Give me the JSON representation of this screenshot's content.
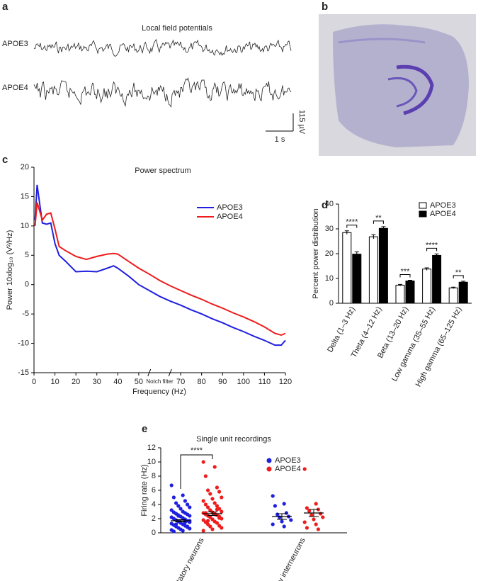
{
  "panel_labels": [
    "a",
    "b",
    "c",
    "d",
    "e"
  ],
  "chart_data": [
    {
      "type": "traces",
      "title": "Local field potentials",
      "series": [
        {
          "name": "APOE3",
          "color": "#222222"
        },
        {
          "name": "APOE4",
          "color": "#222222"
        }
      ],
      "scale_bar": {
        "x_label": "1 s",
        "y_label": "115 µV"
      }
    },
    {
      "type": "line",
      "title": "Power spectrum",
      "xlabel": "Frequency (Hz)",
      "ylabel": "Power 10xlog₁₀ (V²/Hz)",
      "x": [
        0.5,
        1.5,
        4,
        6,
        8,
        10,
        12,
        15,
        20,
        25,
        30,
        35,
        38,
        40,
        45,
        50,
        55,
        60,
        65,
        70,
        75,
        80,
        85,
        90,
        95,
        100,
        105,
        110,
        115,
        118,
        120
      ],
      "series": [
        {
          "name": "APOE3",
          "color": "#1f1fe0",
          "values": [
            11,
            17,
            10.5,
            10.3,
            10.5,
            7,
            5,
            4,
            2.2,
            2.3,
            2.2,
            2.8,
            3.2,
            2.8,
            1.5,
            0,
            -1,
            -2,
            -2.8,
            -3.5,
            -4.3,
            -5,
            -5.8,
            -6.5,
            -7.3,
            -8,
            -8.8,
            -9.5,
            -10.3,
            -10.3,
            -9.5
          ]
        },
        {
          "name": "APOE4",
          "color": "#ee1c1c",
          "values": [
            10,
            14,
            11,
            12,
            12.2,
            9.5,
            6.5,
            5.8,
            4.8,
            4.3,
            4.8,
            5.2,
            5.3,
            5.2,
            4,
            2.8,
            1.8,
            0.7,
            -0.2,
            -1,
            -1.8,
            -2.5,
            -3.3,
            -4,
            -4.8,
            -5.5,
            -6.3,
            -7.2,
            -8.3,
            -8.6,
            -8.3
          ]
        }
      ],
      "xlim": [
        0,
        120
      ],
      "xticks": [
        0,
        10,
        20,
        30,
        40,
        50,
        {
          "value": 60,
          "label": "Notch filter"
        },
        70,
        80,
        90,
        100,
        110,
        120
      ],
      "ylim": [
        -15,
        20
      ],
      "yticks": [
        -15,
        -10,
        -5,
        0,
        5,
        10,
        15,
        20
      ]
    },
    {
      "type": "bar",
      "ylabel": "Percent power distribution",
      "categories": [
        "Delta (1–3 Hz)",
        "Theta (4–12 Hz)",
        "Beta (13–20 Hz)",
        "Low gamma (35–55 Hz)",
        "High gamma (65–125 Hz)"
      ],
      "series": [
        {
          "name": "APOE3",
          "color": "#ffffff",
          "edgecolor": "#000000",
          "values": [
            28.5,
            26.8,
            7.3,
            13.8,
            6.2
          ],
          "errors": [
            0.7,
            0.8,
            0.3,
            0.5,
            0.3
          ]
        },
        {
          "name": "APOE4",
          "color": "#000000",
          "edgecolor": "#000000",
          "values": [
            19.8,
            30.2,
            9,
            19.3,
            8.5
          ],
          "errors": [
            0.9,
            0.7,
            0.3,
            0.6,
            0.4
          ]
        }
      ],
      "significance": [
        "****",
        "**",
        "***",
        "****",
        "**"
      ],
      "ylim": [
        0,
        40
      ],
      "yticks": [
        0,
        10,
        20,
        30,
        40
      ]
    },
    {
      "type": "strip",
      "title": "Single unit recordings",
      "ylabel": "Firing rate (Hz)",
      "categories": [
        "Excitatory neurons",
        "Inhibitory interneurons"
      ],
      "series": [
        {
          "name": "APOE3",
          "color": "#1f1fe0",
          "values": [
            [
              6.7,
              5.3,
              5,
              4.5,
              4.2,
              4,
              3.8,
              3.6,
              3.4,
              3.2,
              3,
              2.9,
              2.8,
              2.7,
              2.6,
              2.5,
              2.4,
              2.3,
              2.2,
              2.1,
              2,
              1.9,
              1.8,
              1.7,
              1.6,
              1.5,
              1.4,
              1.3,
              1.2,
              1.1,
              1,
              0.9,
              0.8,
              0.7,
              0.6,
              0.5,
              0.4,
              0.3,
              0.2,
              1.5,
              1.2,
              0.9,
              2.4,
              1.7
            ],
            [
              5.2,
              4.1,
              3.8,
              2.8,
              2.6,
              2.3,
              2.2,
              1.8,
              1.6,
              1.2,
              0.9
            ]
          ],
          "means": [
            1.7,
            2.3
          ],
          "sem": [
            0.15,
            0.4
          ]
        },
        {
          "name": "APOE4",
          "color": "#ee1c1c",
          "values": [
            [
              10,
              9.3,
              8,
              6.4,
              6,
              5.8,
              5.5,
              5,
              4.8,
              4.5,
              4.2,
              4,
              3.8,
              3.6,
              3.4,
              3.2,
              3,
              2.9,
              2.8,
              2.7,
              2.6,
              2.5,
              2.4,
              2.3,
              2.2,
              2,
              1.9,
              1.8,
              1.6,
              1.5,
              1.4,
              1.2,
              1,
              0.9,
              0.7,
              0.5,
              0.3,
              2.6,
              2.8,
              3.3,
              1.7,
              2.1
            ],
            [
              9,
              4.1,
              3.5,
              3.3,
              3.1,
              2.7,
              2.5,
              2.2,
              1.9,
              1.5,
              1.2,
              0.7,
              0.5
            ]
          ],
          "means": [
            2.7,
            2.8
          ],
          "sem": [
            0.25,
            0.5
          ]
        }
      ],
      "significance": "****",
      "ylim": [
        0,
        12
      ],
      "yticks": [
        0,
        2,
        4,
        6,
        8,
        10,
        12
      ]
    }
  ]
}
